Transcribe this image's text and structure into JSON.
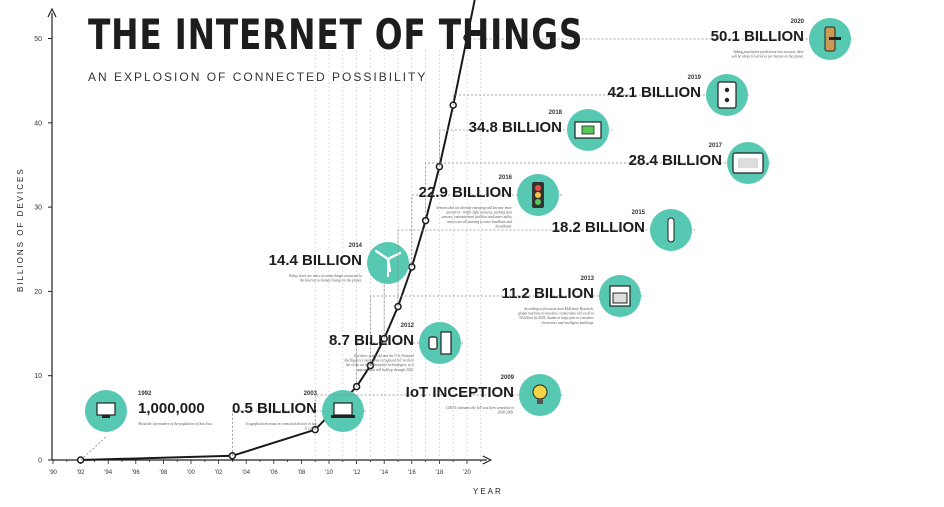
{
  "title": "THE INTERNET OF THINGS",
  "subtitle": "AN EXPLOSION OF CONNECTED POSSIBILITY",
  "colors": {
    "accent": "#57c8b1",
    "line": "#1a1a1a",
    "dashed": "#888888"
  },
  "chart_data": {
    "type": "line",
    "xlabel": "YEAR",
    "ylabel": "BILLIONS OF DEVICES",
    "xlim": [
      1990,
      2021
    ],
    "ylim": [
      0,
      53
    ],
    "x_ticks": [
      "'90",
      "'92",
      "'94",
      "'96",
      "'98",
      "'00",
      "'02",
      "'04",
      "'06",
      "'08",
      "'10",
      "'12",
      "'14",
      "'16",
      "'18",
      "'20"
    ],
    "y_ticks": [
      0,
      10,
      20,
      30,
      40,
      50
    ],
    "series": [
      {
        "points": [
          {
            "x": 1992,
            "y": 0.001
          },
          {
            "x": 2003,
            "y": 0.5
          },
          {
            "x": 2009,
            "y": 3.6
          },
          {
            "x": 2012,
            "y": 8.7
          },
          {
            "x": 2013,
            "y": 11.2
          },
          {
            "x": 2014,
            "y": 14.4
          },
          {
            "x": 2015,
            "y": 18.2
          },
          {
            "x": 2016,
            "y": 22.9
          },
          {
            "x": 2017,
            "y": 28.4
          },
          {
            "x": 2018,
            "y": 34.8
          },
          {
            "x": 2019,
            "y": 42.1
          },
          {
            "x": 2020,
            "y": 50.1
          }
        ]
      }
    ],
    "annotations": [
      {
        "year": "1992",
        "value": "1,000,000",
        "icon": "computer-icon",
        "x": 1992,
        "y": 0.001,
        "desc": "About the top number of the population of San Jose."
      },
      {
        "year": "2003",
        "value": "0.5 BILLION",
        "icon": "laptop-icon",
        "x": 2003,
        "y": 0.5,
        "desc": "A significant increase in connected devices in just 11 years."
      },
      {
        "year": "2009",
        "value": "IoT INCEPTION",
        "icon": "lightbulb-icon",
        "x": 2009,
        "y": 3.6,
        "desc": "CISCO estimates the IoT was born sometime in 2008-2009."
      },
      {
        "year": "2012",
        "value": "8.7 BILLION",
        "icon": "smartwatch-fridge-icon",
        "x": 2012,
        "y": 8.7,
        "desc": "Just three years old and the U.S. National Intelligence Council has recognized IoT on their list of the six most disruptive technologies, so it appears that will hold up through 2025."
      },
      {
        "year": "2013",
        "value": "11.2 BILLION",
        "icon": "oven-icon",
        "x": 2013,
        "y": 11.2,
        "desc": "According to forecasts from McKinsey Research, global machine-to-machine connections will swell to 50 billion by 2025, thanks in large part to consumer electronics and intelligent buildings."
      },
      {
        "year": "2014",
        "value": "14.4 BILLION",
        "icon": "wind-turbine-icon",
        "x": 2014,
        "y": 14.4,
        "desc": "Today, there are twice as many things connected to the Internet as human beings on the planet."
      },
      {
        "year": "2015",
        "value": "18.2 BILLION",
        "icon": "toothbrush-icon",
        "x": 2015,
        "y": 18.2,
        "desc": ""
      },
      {
        "year": "2016",
        "value": "22.9 BILLION",
        "icon": "traffic-light-icon",
        "x": 2016,
        "y": 22.9,
        "desc": "Sensors that are already emerging will become more prevalent - traffic light cameras, parking spot sensors, entertainment facilities and smart utility meters are all starting to enter headlines and broadband."
      },
      {
        "year": "2017",
        "value": "28.4 BILLION",
        "icon": "thermostat-icon",
        "x": 2017,
        "y": 28.4,
        "desc": ""
      },
      {
        "year": "2018",
        "value": "34.8 BILLION",
        "icon": "money-icon",
        "x": 2018,
        "y": 34.8,
        "desc": ""
      },
      {
        "year": "2019",
        "value": "42.1 BILLION",
        "icon": "power-outlet-icon",
        "x": 2019,
        "y": 42.1,
        "desc": ""
      },
      {
        "year": "2020",
        "value": "50.1 BILLION",
        "icon": "door-lock-icon",
        "x": 2020,
        "y": 50.1,
        "desc": "Taking population predictions into account, there will be about 6.6 devices per human on the planet."
      }
    ]
  }
}
